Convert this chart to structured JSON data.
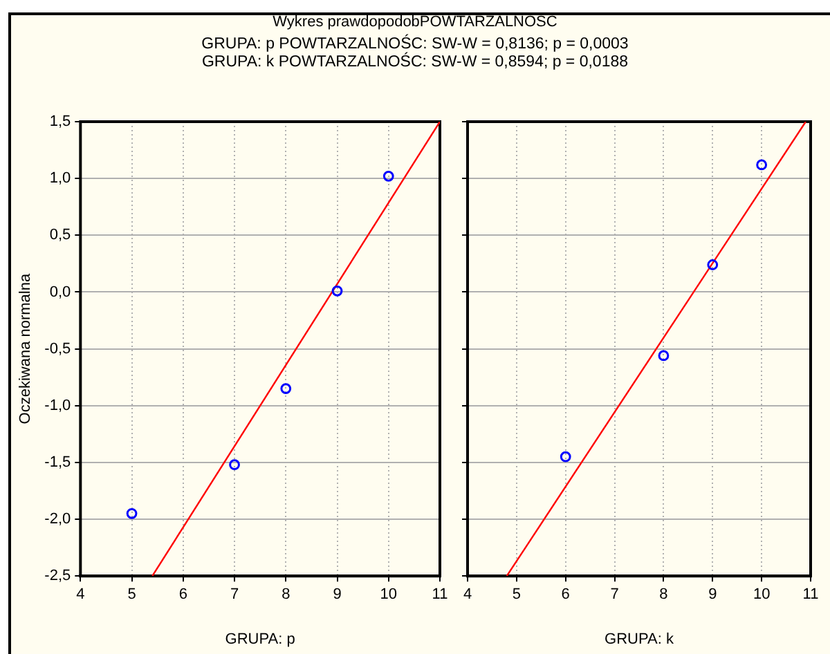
{
  "chart_data": [
    {
      "type": "scatter",
      "title": "Wykres prawdopodobPOWTARZALNOŚC",
      "annotations": [
        "GRUPA: p  POWTARZALNOŚC:  SW-W = 0,8136; p = 0,0003",
        "GRUPA: k  POWTARZALNOŚC:  SW-W = 0,8594; p = 0,0188"
      ],
      "xlabel": "GRUPA: p",
      "ylabel": "Oczekiwana normalna",
      "xlim": [
        4,
        11
      ],
      "xticks": [
        4,
        5,
        6,
        7,
        8,
        9,
        10,
        11
      ],
      "ylim": [
        -2.5,
        1.5
      ],
      "yticks": [
        {
          "value": -2.5,
          "label": "-2,5"
        },
        {
          "value": -2,
          "label": "-2,0"
        },
        {
          "value": -1.5,
          "label": "-1,5"
        },
        {
          "value": -1,
          "label": "-1,0"
        },
        {
          "value": -0.5,
          "label": "-0,5"
        },
        {
          "value": 0,
          "label": "0,0"
        },
        {
          "value": 0.5,
          "label": "0,5"
        },
        {
          "value": 1,
          "label": "1,0"
        },
        {
          "value": 1.5,
          "label": "1,5"
        }
      ],
      "grid": true,
      "series": [
        {
          "color": "#0000ff",
          "marker": "circle",
          "x": [
            5,
            7,
            8,
            9,
            10
          ],
          "values": [
            -1.95,
            -1.52,
            -0.85,
            0.01,
            1.02
          ]
        },
        {
          "type": "line",
          "color": "#ff0000",
          "marker": "none",
          "x": [
            5.4,
            11
          ],
          "values": [
            -2.5,
            1.5
          ]
        }
      ]
    },
    {
      "type": "scatter",
      "xlabel": "GRUPA: k",
      "xlim": [
        4,
        11
      ],
      "xticks": [
        4,
        5,
        6,
        7,
        8,
        9,
        10,
        11
      ],
      "ylim": [
        -2.5,
        1.5
      ],
      "yticks": [
        {
          "value": -2.5,
          "label": null
        },
        {
          "value": -2,
          "label": null
        },
        {
          "value": -1.5,
          "label": null
        },
        {
          "value": -1,
          "label": null
        },
        {
          "value": -0.5,
          "label": null
        },
        {
          "value": 0,
          "label": null
        },
        {
          "value": 0.5,
          "label": null
        },
        {
          "value": 1,
          "label": null
        },
        {
          "value": 1.5,
          "label": null
        }
      ],
      "grid": true,
      "tick_labels": "x",
      "series": [
        {
          "color": "#0000ff",
          "marker": "circle",
          "x": [
            6,
            8,
            9,
            10
          ],
          "values": [
            -1.45,
            -0.56,
            0.24,
            1.12
          ]
        },
        {
          "type": "line",
          "color": "#ff0000",
          "marker": "none",
          "x": [
            4.8,
            10.9
          ],
          "values": [
            -2.5,
            1.5
          ]
        }
      ]
    }
  ]
}
